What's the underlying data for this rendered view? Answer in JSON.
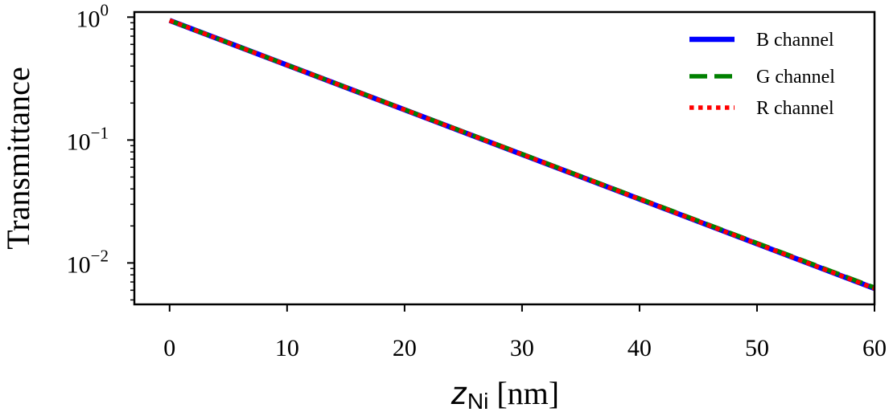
{
  "chart_data": {
    "type": "line",
    "xlabel": {
      "var": "z",
      "sub": "Ni",
      "unit": "[nm]"
    },
    "ylabel": "Transmittance",
    "xlim": [
      -3,
      60
    ],
    "ylim": [
      0.0046,
      1.1
    ],
    "yscale": "log",
    "x_ticks": [
      0,
      10,
      20,
      30,
      40,
      50,
      60
    ],
    "y_ticks": [
      {
        "value": 1,
        "base": "10",
        "exp": "0"
      },
      {
        "value": 0.1,
        "base": "10",
        "exp": "−1"
      },
      {
        "value": 0.01,
        "base": "10",
        "exp": "−2"
      }
    ],
    "grid": false,
    "legend": {
      "placement": "top-right"
    },
    "series": [
      {
        "name": "B channel",
        "color": "#0000ff",
        "style": "solid",
        "x": [
          0,
          60
        ],
        "y": [
          0.94,
          0.0062
        ]
      },
      {
        "name": "G channel",
        "color": "#008000",
        "style": "dashed",
        "x": [
          0,
          60
        ],
        "y": [
          0.94,
          0.0063
        ]
      },
      {
        "name": "R channel",
        "color": "#ff0000",
        "style": "dotted",
        "x": [
          0,
          60
        ],
        "y": [
          0.94,
          0.0062
        ]
      }
    ]
  }
}
